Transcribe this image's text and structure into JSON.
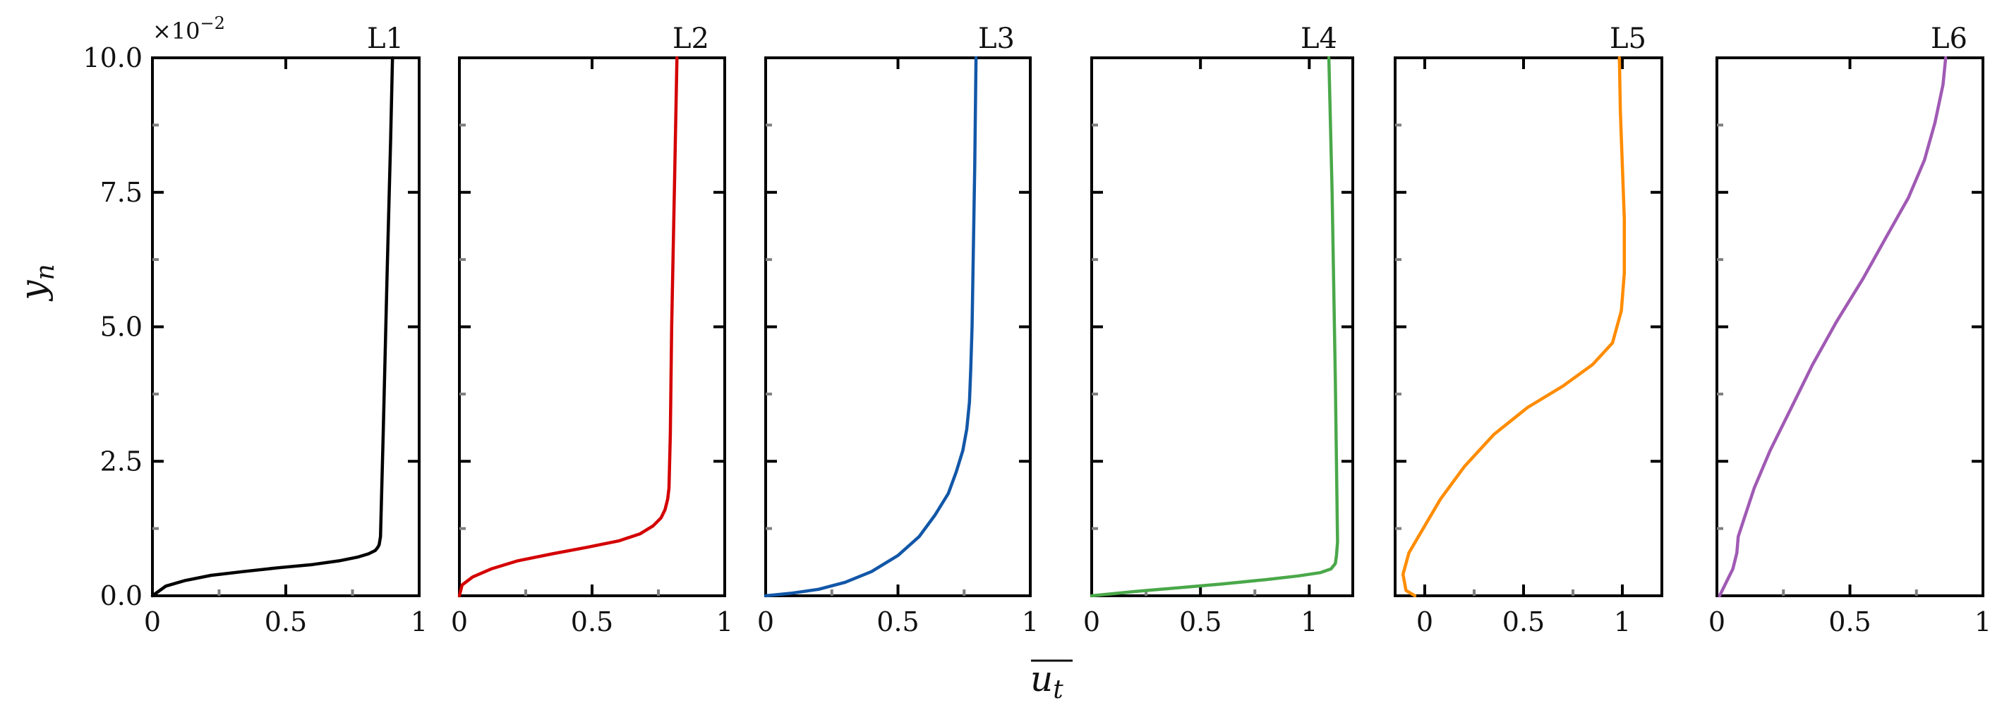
{
  "figure": {
    "ylabel_base": "y",
    "ylabel_sub": "n",
    "xlabel_base": "u",
    "xlabel_sub": "t",
    "y_exponent": "×10",
    "y_exponent_power": "−2"
  },
  "chart_data": [
    {
      "type": "line",
      "title": "L1",
      "color": "#000000",
      "xlim": [
        0,
        1
      ],
      "ylim": [
        0,
        0.1
      ],
      "xticks": [
        0,
        0.5,
        1
      ],
      "xtick_labels": [
        "0",
        "0.5",
        "1"
      ],
      "yticks": [
        0,
        0.025,
        0.05,
        0.075,
        0.1
      ],
      "ytick_labels": [
        "0.0",
        "2.5",
        "5.0",
        "7.5",
        "10.0"
      ],
      "series": [
        {
          "x": [
            0.0,
            0.05,
            0.12,
            0.22,
            0.34,
            0.47,
            0.6,
            0.7,
            0.77,
            0.81,
            0.835,
            0.845,
            0.85,
            0.855,
            0.865,
            0.88,
            0.893,
            0.9
          ],
          "y": [
            0.0,
            0.0018,
            0.0028,
            0.0038,
            0.0045,
            0.0052,
            0.0058,
            0.0065,
            0.0072,
            0.0078,
            0.0084,
            0.009,
            0.0095,
            0.011,
            0.03,
            0.06,
            0.085,
            0.1
          ]
        }
      ]
    },
    {
      "type": "line",
      "title": "L2",
      "color": "#d40000",
      "xlim": [
        0,
        1
      ],
      "ylim": [
        0,
        0.1
      ],
      "xticks": [
        0,
        0.5,
        1
      ],
      "xtick_labels": [
        "0",
        "0.5",
        "1"
      ],
      "yticks": [
        0,
        0.025,
        0.05,
        0.075,
        0.1
      ],
      "ytick_labels": [
        "0.0",
        "2.5",
        "5.0",
        "7.5",
        "10.0"
      ],
      "series": [
        {
          "x": [
            0.0,
            0.01,
            0.05,
            0.12,
            0.22,
            0.35,
            0.48,
            0.6,
            0.68,
            0.73,
            0.76,
            0.775,
            0.785,
            0.79,
            0.795,
            0.8,
            0.81,
            0.82
          ],
          "y": [
            0.0,
            0.002,
            0.0035,
            0.005,
            0.0065,
            0.0078,
            0.009,
            0.0102,
            0.0115,
            0.013,
            0.0145,
            0.016,
            0.018,
            0.02,
            0.03,
            0.05,
            0.075,
            0.1
          ]
        }
      ]
    },
    {
      "type": "line",
      "title": "L3",
      "color": "#1257a8",
      "xlim": [
        0,
        1
      ],
      "ylim": [
        0,
        0.1
      ],
      "xticks": [
        0,
        0.5,
        1
      ],
      "xtick_labels": [
        "0",
        "0.5",
        "1"
      ],
      "yticks": [
        0,
        0.025,
        0.05,
        0.075,
        0.1
      ],
      "ytick_labels": [
        "0.0",
        "2.5",
        "5.0",
        "7.5",
        "10.0"
      ],
      "series": [
        {
          "x": [
            0.0,
            0.1,
            0.2,
            0.3,
            0.4,
            0.5,
            0.58,
            0.64,
            0.69,
            0.72,
            0.745,
            0.76,
            0.77,
            0.775,
            0.78,
            0.785,
            0.79,
            0.795
          ],
          "y": [
            0.0,
            0.0005,
            0.0012,
            0.0025,
            0.0045,
            0.0075,
            0.011,
            0.015,
            0.019,
            0.023,
            0.027,
            0.031,
            0.036,
            0.042,
            0.05,
            0.065,
            0.08,
            0.1
          ]
        }
      ]
    },
    {
      "type": "line",
      "title": "L4",
      "color": "#4aa84a",
      "xlim": [
        0,
        1.2
      ],
      "ylim": [
        0,
        0.1
      ],
      "xticks": [
        0,
        0.5,
        1
      ],
      "xtick_labels": [
        "0",
        "0.5",
        "1"
      ],
      "yticks": [
        0,
        0.025,
        0.05,
        0.075,
        0.1
      ],
      "ytick_labels": [
        "0.0",
        "2.5",
        "5.0",
        "7.5",
        "10.0"
      ],
      "series": [
        {
          "x": [
            0.0,
            0.2,
            0.4,
            0.6,
            0.8,
            0.95,
            1.05,
            1.1,
            1.12,
            1.125,
            1.13,
            1.12,
            1.105,
            1.09
          ],
          "y": [
            0.0,
            0.0008,
            0.0015,
            0.0022,
            0.003,
            0.0037,
            0.0043,
            0.005,
            0.006,
            0.0075,
            0.01,
            0.04,
            0.075,
            0.1
          ]
        }
      ]
    },
    {
      "type": "line",
      "title": "L5",
      "color": "#ff8c00",
      "xlim": [
        -0.15,
        1.2
      ],
      "ylim": [
        0,
        0.1
      ],
      "xticks": [
        0,
        0.5,
        1
      ],
      "xtick_labels": [
        "0",
        "0.5",
        "1"
      ],
      "yticks": [
        0,
        0.025,
        0.05,
        0.075,
        0.1
      ],
      "ytick_labels": [
        "0.0",
        "2.5",
        "5.0",
        "7.5",
        "10.0"
      ],
      "series": [
        {
          "x": [
            -0.05,
            -0.095,
            -0.11,
            -0.08,
            0.0,
            0.08,
            0.2,
            0.35,
            0.52,
            0.7,
            0.85,
            0.95,
            0.995,
            1.01,
            1.01,
            1.0,
            0.99,
            0.985
          ],
          "y": [
            0.0,
            0.001,
            0.004,
            0.008,
            0.013,
            0.018,
            0.024,
            0.03,
            0.035,
            0.039,
            0.043,
            0.047,
            0.053,
            0.06,
            0.07,
            0.08,
            0.09,
            0.1
          ]
        }
      ]
    },
    {
      "type": "line",
      "title": "L6",
      "color": "#a05ab4",
      "xlim": [
        0,
        1.0
      ],
      "ylim": [
        0,
        0.1
      ],
      "xticks": [
        0,
        0.5,
        1
      ],
      "xtick_labels": [
        "0",
        "0.5",
        "1"
      ],
      "yticks": [
        0,
        0.025,
        0.05,
        0.075,
        0.1
      ],
      "ytick_labels": [
        "0.0",
        "2.5",
        "5.0",
        "7.5",
        "10.0"
      ],
      "series": [
        {
          "x": [
            0.01,
            0.03,
            0.06,
            0.075,
            0.08,
            0.1,
            0.14,
            0.2,
            0.28,
            0.36,
            0.45,
            0.55,
            0.64,
            0.72,
            0.78,
            0.82,
            0.85,
            0.86
          ],
          "y": [
            0.0,
            0.002,
            0.005,
            0.008,
            0.011,
            0.014,
            0.02,
            0.027,
            0.035,
            0.043,
            0.051,
            0.059,
            0.067,
            0.074,
            0.081,
            0.088,
            0.095,
            0.1
          ]
        }
      ]
    }
  ]
}
